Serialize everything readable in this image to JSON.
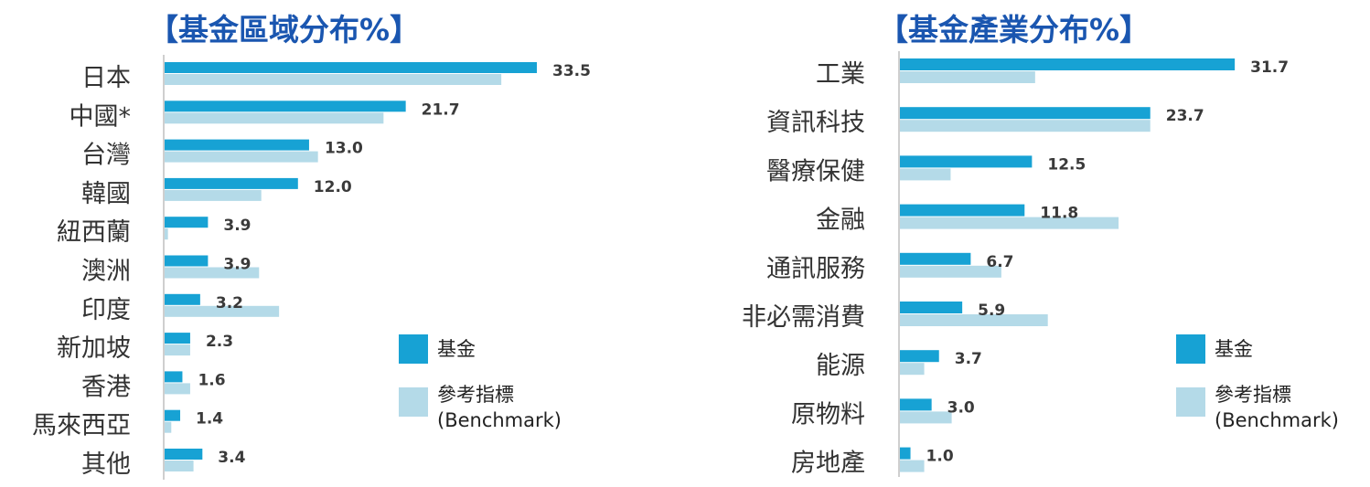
{
  "colors": {
    "fund": "#17a2d4",
    "benchmark": "#b4dae8",
    "title": "#1a56b0"
  },
  "legend": {
    "fund_label": "基金",
    "benchmark_label": "參考指標",
    "benchmark_sub": "(Benchmark)"
  },
  "chart_data": [
    {
      "type": "bar",
      "orientation": "horizontal",
      "title": "【基金區域分布%】",
      "categories": [
        "日本",
        "中國*",
        "台灣",
        "韓國",
        "紐西蘭",
        "澳洲",
        "印度",
        "新加坡",
        "香港",
        "馬來西亞",
        "其他"
      ],
      "series": [
        {
          "name": "基金",
          "values": [
            33.5,
            21.7,
            13.0,
            12.0,
            3.9,
            3.9,
            3.2,
            2.3,
            1.6,
            1.4,
            3.4
          ]
        },
        {
          "name": "參考指標 (Benchmark)",
          "values": [
            30.3,
            19.7,
            13.8,
            8.7,
            0.3,
            8.5,
            10.3,
            2.3,
            2.3,
            0.6,
            2.6
          ]
        }
      ],
      "data_labels": [
        "33.5",
        "21.7",
        "13.0",
        "12.0",
        "3.9",
        "3.9",
        "3.2",
        "2.3",
        "1.6",
        "1.4",
        "3.4"
      ],
      "xlim": [
        0,
        40
      ],
      "grid": false,
      "legend_position": "right"
    },
    {
      "type": "bar",
      "orientation": "horizontal",
      "title": "【基金產業分布%】",
      "categories": [
        "工業",
        "資訊科技",
        "醫療保健",
        "金融",
        "通訊服務",
        "非必需消費",
        "能源",
        "原物料",
        "房地產"
      ],
      "series": [
        {
          "name": "基金",
          "values": [
            31.7,
            23.7,
            12.5,
            11.8,
            6.7,
            5.9,
            3.7,
            3.0,
            1.0
          ]
        },
        {
          "name": "參考指標 (Benchmark)",
          "values": [
            12.8,
            23.7,
            4.8,
            20.7,
            9.6,
            14.0,
            2.3,
            4.9,
            2.3
          ]
        }
      ],
      "data_labels": [
        "31.7",
        "23.7",
        "12.5",
        "11.8",
        "6.7",
        "5.9",
        "3.7",
        "3.0",
        "1.0"
      ],
      "xlim": [
        0,
        40
      ],
      "grid": false,
      "legend_position": "right"
    }
  ]
}
